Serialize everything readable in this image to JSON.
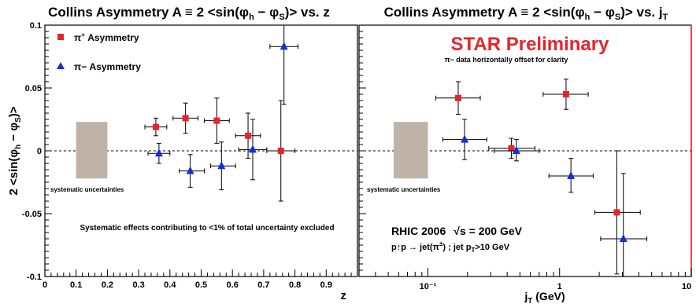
{
  "colors": {
    "pi_plus": "#e8232a",
    "pi_minus": "#1030d8",
    "syst_box": "#bfb3a8",
    "prelim": "#e8232a",
    "frame_right": "#e8232a"
  },
  "ylabel": "2 <sin(φ_h − φ_S)>",
  "chart_data": [
    {
      "type": "scatter",
      "title": "Collins Asymmetry A ≡ 2 <sin(φ_h − φ_S)> vs. z",
      "xlabel": "z",
      "ylabel": "2 <sin(φ_h − φ_S)>",
      "xlim": [
        0,
        1
      ],
      "ylim": [
        -0.1,
        0.1
      ],
      "x_ticks": [
        "0",
        "0.1",
        "0.2",
        "0.3",
        "0.4",
        "0.5",
        "0.6",
        "0.7",
        "0.8",
        "0.9"
      ],
      "y_ticks": [
        "-0.1",
        "-0.05",
        "0",
        "0.05",
        "0.1"
      ],
      "legend": [
        "π⁺ Asymmetry",
        "π− Asymmetry"
      ],
      "systematic_label": "systematic uncertainties",
      "systematic_band": {
        "x": [
          0.1,
          0.2
        ],
        "y": [
          -0.022,
          0.023
        ]
      },
      "footnote": "Systematic effects contributing to <1% of total uncertainty excluded",
      "series": [
        {
          "name": "π⁺ Asymmetry",
          "marker": "square",
          "points": [
            {
              "x": 0.355,
              "y": 0.019,
              "xlo": 0.32,
              "xhi": 0.39,
              "ylo": 0.012,
              "yhi": 0.026
            },
            {
              "x": 0.45,
              "y": 0.026,
              "xlo": 0.41,
              "xhi": 0.49,
              "ylo": 0.014,
              "yhi": 0.038
            },
            {
              "x": 0.55,
              "y": 0.024,
              "xlo": 0.51,
              "xhi": 0.59,
              "ylo": 0.006,
              "yhi": 0.042
            },
            {
              "x": 0.65,
              "y": 0.012,
              "xlo": 0.61,
              "xhi": 0.69,
              "ylo": -0.006,
              "yhi": 0.03
            },
            {
              "x": 0.755,
              "y": 0.0,
              "xlo": 0.71,
              "xhi": 0.8,
              "ylo": -0.04,
              "yhi": 0.04
            }
          ]
        },
        {
          "name": "π− Asymmetry",
          "marker": "triangle",
          "points": [
            {
              "x": 0.365,
              "y": -0.002,
              "xlo": 0.33,
              "xhi": 0.4,
              "ylo": -0.01,
              "yhi": 0.006
            },
            {
              "x": 0.465,
              "y": -0.016,
              "xlo": 0.43,
              "xhi": 0.51,
              "ylo": -0.029,
              "yhi": -0.003
            },
            {
              "x": 0.565,
              "y": -0.012,
              "xlo": 0.53,
              "xhi": 0.61,
              "ylo": -0.031,
              "yhi": 0.007
            },
            {
              "x": 0.665,
              "y": 0.001,
              "xlo": 0.62,
              "xhi": 0.71,
              "ylo": -0.023,
              "yhi": 0.025
            },
            {
              "x": 0.765,
              "y": 0.083,
              "xlo": 0.72,
              "xhi": 0.81,
              "ylo": 0.037,
              "yhi": 0.13
            }
          ]
        }
      ]
    },
    {
      "type": "scatter",
      "title": "Collins Asymmetry A ≡ 2 <sin(φ_h − φ_S)> vs. j_T",
      "xlabel": "j_T (GeV)",
      "xscale": "log",
      "xlim": [
        0.03,
        10
      ],
      "ylim": [
        -0.1,
        0.1
      ],
      "x_ticks": [
        "10⁻¹",
        "1",
        "10"
      ],
      "annotation_prelim": "STAR Preliminary",
      "annotation_offset": "π− data horizontally offset for clarity",
      "systematic_label": "systematic uncertainties",
      "systematic_band": {
        "x": [
          0.055,
          0.1
        ],
        "y": [
          -0.022,
          0.023
        ]
      },
      "rhic_label": "RHIC 2006",
      "sqrt_s_label": "√s = 200 GeV",
      "reaction_label": "p↑p → jet(π±) ; jet p_T>10 GeV",
      "series": [
        {
          "name": "π⁺",
          "marker": "square",
          "points": [
            {
              "x": 0.17,
              "y": 0.042,
              "xlo": 0.115,
              "xhi": 0.25,
              "ylo": 0.029,
              "yhi": 0.055
            },
            {
              "x": 0.43,
              "y": 0.002,
              "xlo": 0.29,
              "xhi": 0.65,
              "ylo": -0.006,
              "yhi": 0.01
            },
            {
              "x": 1.12,
              "y": 0.045,
              "xlo": 0.75,
              "xhi": 1.65,
              "ylo": 0.033,
              "yhi": 0.057
            },
            {
              "x": 2.72,
              "y": -0.049,
              "xlo": 1.85,
              "xhi": 4.1,
              "ylo": -0.098,
              "yhi": 0.0
            }
          ]
        },
        {
          "name": "π−",
          "marker": "triangle",
          "points": [
            {
              "x": 0.19,
              "y": 0.009,
              "xlo": 0.13,
              "xhi": 0.28,
              "ylo": -0.007,
              "yhi": 0.025
            },
            {
              "x": 0.47,
              "y": 0.0,
              "xlo": 0.32,
              "xhi": 0.7,
              "ylo": -0.008,
              "yhi": 0.009
            },
            {
              "x": 1.22,
              "y": -0.02,
              "xlo": 0.83,
              "xhi": 1.8,
              "ylo": -0.033,
              "yhi": -0.006
            },
            {
              "x": 3.05,
              "y": -0.07,
              "xlo": 2.05,
              "xhi": 4.6,
              "ylo": -0.12,
              "yhi": -0.018
            }
          ]
        }
      ]
    }
  ]
}
